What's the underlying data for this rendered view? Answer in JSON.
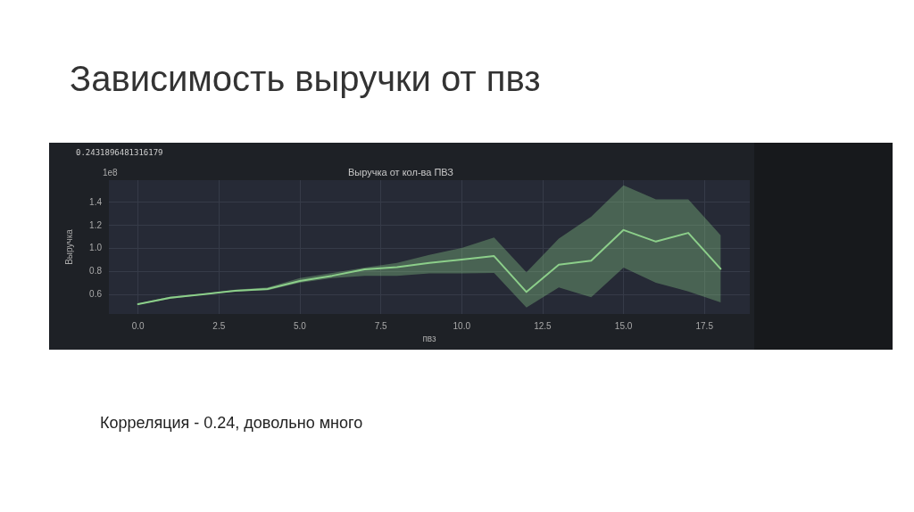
{
  "chart_data": {
    "type": "line",
    "title": "Зависимость выручки от пвз",
    "subtitle": "Выручка от кол-ва ПВЗ",
    "xlabel": "пвз",
    "ylabel": "Выручка",
    "annotations": [
      "0.2431896481316179",
      "1e8",
      "Корреляция - 0.24, довольно много"
    ],
    "x": [
      0,
      1,
      2,
      3,
      4,
      5,
      6,
      7,
      8,
      9,
      10,
      11,
      12,
      13,
      14,
      15,
      16,
      17,
      18
    ],
    "series": [
      {
        "color": "#8ccf8a",
        "values": [
          0.515,
          0.57,
          0.6,
          0.63,
          0.645,
          0.715,
          0.76,
          0.815,
          0.835,
          0.87,
          0.9,
          0.93,
          0.62,
          0.855,
          0.89,
          1.155,
          1.055,
          1.13,
          0.82
        ],
        "lower": [
          0.51,
          0.56,
          0.595,
          0.625,
          0.635,
          0.7,
          0.74,
          0.76,
          0.76,
          0.78,
          0.78,
          0.785,
          0.485,
          0.66,
          0.575,
          0.83,
          0.7,
          0.625,
          0.53
        ],
        "upper": [
          0.52,
          0.58,
          0.605,
          0.64,
          0.66,
          0.74,
          0.785,
          0.83,
          0.87,
          0.94,
          1.0,
          1.09,
          0.79,
          1.08,
          1.27,
          1.54,
          1.42,
          1.42,
          1.11
        ]
      }
    ],
    "xlim": [
      -0.9,
      18.9
    ],
    "ylim": [
      0.43,
      1.585
    ],
    "xticks": [
      {
        "value": 0,
        "label": "0.0"
      },
      {
        "value": 2.5,
        "label": "2.5"
      },
      {
        "value": 5,
        "label": "5.0"
      },
      {
        "value": 7.5,
        "label": "7.5"
      },
      {
        "value": 10,
        "label": "10.0"
      },
      {
        "value": 12.5,
        "label": "12.5"
      },
      {
        "value": 15,
        "label": "15.0"
      },
      {
        "value": 17.5,
        "label": "17.5"
      }
    ],
    "yticks": [
      {
        "value": 0.6,
        "label": "0.6"
      },
      {
        "value": 0.8,
        "label": "0.8"
      },
      {
        "value": 1.0,
        "label": "1.0"
      },
      {
        "value": 1.2,
        "label": "1.2"
      },
      {
        "value": 1.4,
        "label": "1.4"
      }
    ],
    "grid": true,
    "marker": "none",
    "line_style": "solid"
  }
}
